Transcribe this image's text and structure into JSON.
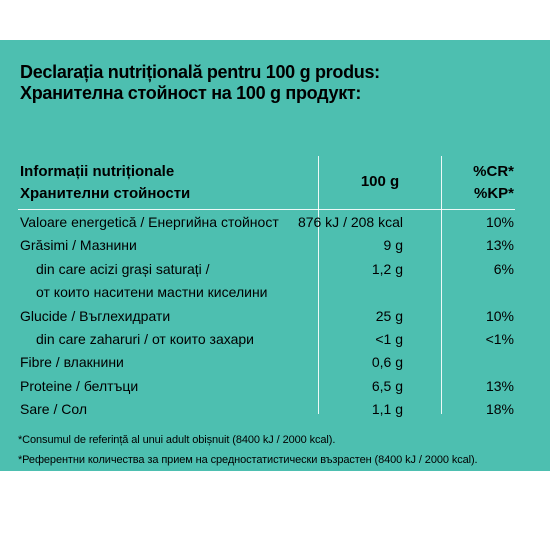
{
  "heading": {
    "line1": "Declarația nutrițională pentru 100 g produs:",
    "line2": "Хранителна стойност на 100 g продукт:"
  },
  "table": {
    "header_info_ro": "Informații nutriționale",
    "header_info_bg": "Хранителни стойности",
    "header_amount": "100 g",
    "header_cr": "%CR*",
    "header_kp": "%KP*",
    "rows": [
      {
        "name": "Valoare energetică / Енергийна стойност",
        "value": "876 kJ / 208 kcal",
        "pct": "10%"
      },
      {
        "name": "Grăsimi / Мазнини",
        "value": "9 g",
        "pct": "13%"
      },
      {
        "name": "din care acizi grași saturați /",
        "value": "1,2 g",
        "pct": "6%"
      },
      {
        "name": "от които наситени мастни киселини",
        "value": "",
        "pct": ""
      },
      {
        "name": "Glucide / Въглехидрати",
        "value": "25 g",
        "pct": "10%"
      },
      {
        "name": "din care zaharuri / от които захари",
        "value": "<1 g",
        "pct": "<1%"
      },
      {
        "name": "Fibre / влакнини",
        "value": "0,6 g",
        "pct": ""
      },
      {
        "name": "Proteine / белтъци",
        "value": "6,5 g",
        "pct": "13%"
      },
      {
        "name": "Sare / Сол",
        "value": "1,1 g",
        "pct": "18%"
      }
    ]
  },
  "footnotes": {
    "ro": "*Consumul de referință al unui adult obișnuit (8400 kJ / 2000 kcal).",
    "bg": "*Референтни количества за прием на средностатистически възрастен (8400 kJ / 2000 kcal)."
  }
}
